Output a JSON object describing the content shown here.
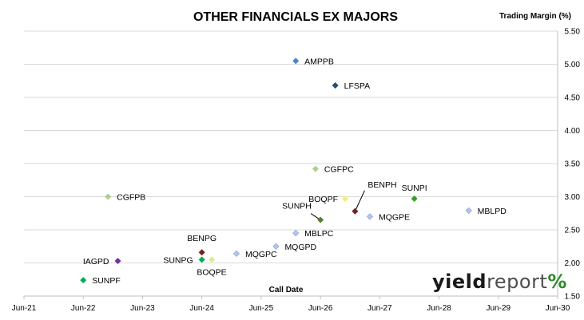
{
  "chart_data": {
    "type": "scatter",
    "title": "OTHER FINANCIALS EX MAJORS",
    "xlabel": "Call Date",
    "ylabel": "Trading Margin (%)",
    "x_ticks": [
      "Jun-21",
      "Jun-22",
      "Jun-23",
      "Jun-24",
      "Jun-25",
      "Jun-26",
      "Jun-27",
      "Jun-28",
      "Jun-29",
      "Jun-30"
    ],
    "xlim": [
      "Jun-21",
      "Jun-30"
    ],
    "ylim": [
      1.5,
      5.5
    ],
    "y_ticks": [
      "1.50",
      "2.00",
      "2.50",
      "3.00",
      "3.50",
      "4.00",
      "4.50",
      "5.00",
      "5.50"
    ],
    "y_axis_side": "right",
    "grid": "horizontal",
    "legend": "none",
    "points": [
      {
        "label": "AMPPB",
        "x": "Jan-26",
        "y": 5.05,
        "color": "#4a86c8",
        "style": "filled"
      },
      {
        "label": "LFSPA",
        "x": "Sep-26",
        "y": 4.68,
        "color": "#1f4e79",
        "style": "filled"
      },
      {
        "label": "CGFPC",
        "x": "May-26",
        "y": 3.42,
        "color": "#a9d18e",
        "style": "filled"
      },
      {
        "label": "CGFPB",
        "x": "Nov-22",
        "y": 3.0,
        "color": "#a9d18e",
        "style": "filled"
      },
      {
        "label": "BOQPF",
        "x": "Nov-26",
        "y": 2.97,
        "color": "#eef07a",
        "style": "filled"
      },
      {
        "label": "SUNPI",
        "x": "Jan-28",
        "y": 2.97,
        "color": "#33a02c",
        "style": "filled"
      },
      {
        "label": "BENPH",
        "x": "Jan-27",
        "y": 2.78,
        "color": "#7b1f1f",
        "style": "filled"
      },
      {
        "label": "MQGPE",
        "x": "Apr-27",
        "y": 2.7,
        "color": "#b4c7e7",
        "style": "light"
      },
      {
        "label": "MBLPD",
        "x": "Dec-28",
        "y": 2.79,
        "color": "#b4c7e7",
        "style": "light"
      },
      {
        "label": "SUNPH",
        "x": "Jun-26",
        "y": 2.65,
        "color": "#548235",
        "style": "filled"
      },
      {
        "label": "MBLPC",
        "x": "Jan-26",
        "y": 2.45,
        "color": "#b4c7e7",
        "style": "light"
      },
      {
        "label": "MQGPD",
        "x": "Sep-25",
        "y": 2.25,
        "color": "#b4c7e7",
        "style": "light"
      },
      {
        "label": "BENPG",
        "x": "Jun-24",
        "y": 2.16,
        "color": "#7b1f1f",
        "style": "filled"
      },
      {
        "label": "MQGPC",
        "x": "Jan-25",
        "y": 2.14,
        "color": "#b4c7e7",
        "style": "light"
      },
      {
        "label": "IAGPD",
        "x": "Jan-23",
        "y": 2.03,
        "color": "#7030a0",
        "style": "filled"
      },
      {
        "label": "SUNPG",
        "x": "Jun-24",
        "y": 2.05,
        "color": "#00b050",
        "style": "filled"
      },
      {
        "label": "BOQPE",
        "x": "Aug-24",
        "y": 2.05,
        "color": "#d9ef8a",
        "style": "filled"
      },
      {
        "label": "SUNPF",
        "x": "Jun-22",
        "y": 1.74,
        "color": "#00b050",
        "style": "filled"
      }
    ]
  },
  "logo": {
    "part1": "yield",
    "part2": "report",
    "part3": "%"
  }
}
